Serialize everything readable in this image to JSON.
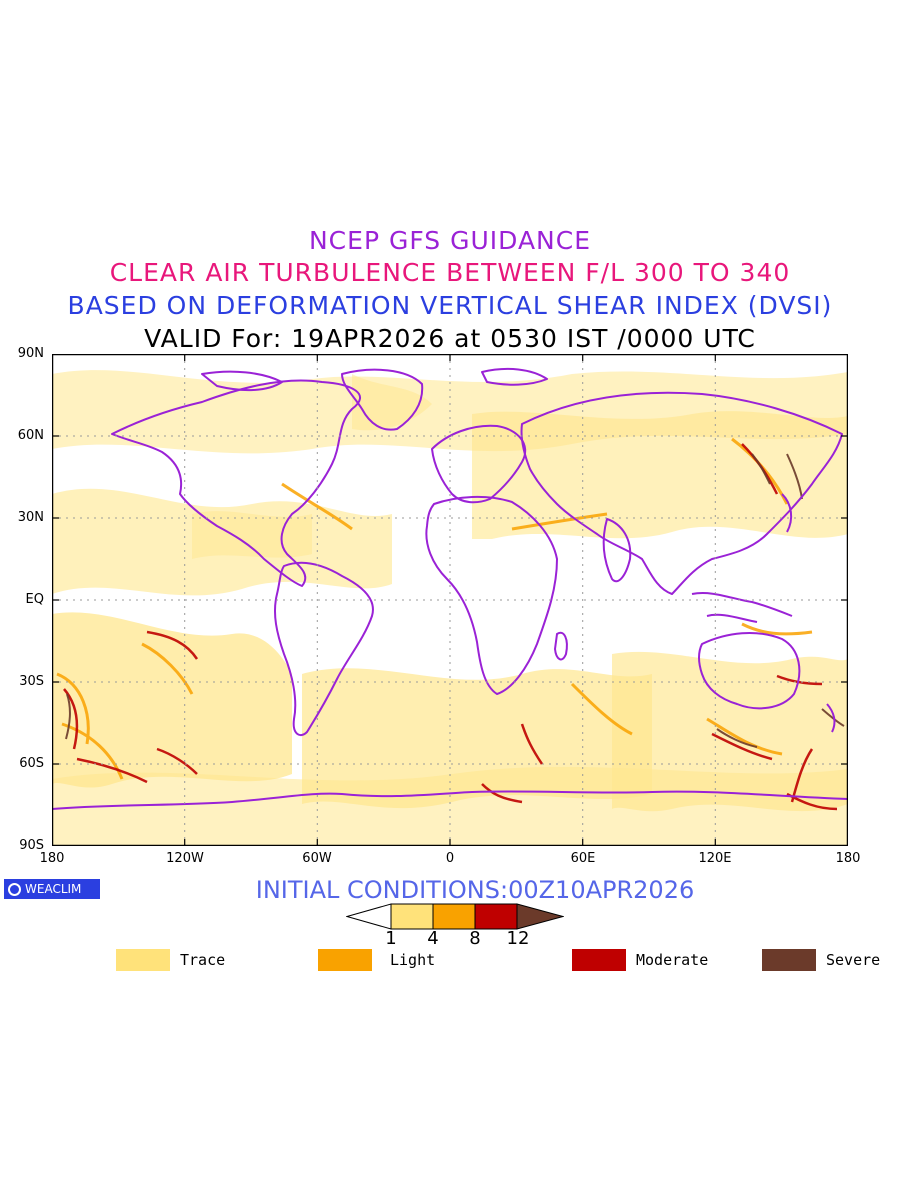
{
  "titles": {
    "line1": "NCEP GFS GUIDANCE",
    "line2": "CLEAR AIR TURBULENCE BETWEEN F/L 300 TO 340",
    "line3": "BASED ON DEFORMATION VERTICAL SHEAR INDEX (DVSI)",
    "line4": "VALID For: 19APR2026 at 0530 IST /0000 UTC"
  },
  "axes": {
    "y_ticks": [
      "90N",
      "60N",
      "30N",
      "EQ",
      "30S",
      "60S",
      "90S"
    ],
    "x_ticks": [
      "180",
      "120W",
      "60W",
      "0",
      "60E",
      "120E",
      "180"
    ]
  },
  "logo_text": "WEACLIM",
  "initial_conditions": "INITIAL CONDITIONS:00Z10APR2026",
  "colorbar": {
    "ticks": [
      "1",
      "4",
      "8",
      "12"
    ],
    "colors": [
      "#ffe27a",
      "#f9a200",
      "#bf0000",
      "#6b3a2a"
    ]
  },
  "legend": [
    {
      "label": "Trace",
      "color": "#ffe27a"
    },
    {
      "label": "Light",
      "color": "#f9a200"
    },
    {
      "label": "Moderate",
      "color": "#bf0000"
    },
    {
      "label": "Severe",
      "color": "#6b3a2a"
    }
  ],
  "map_colors": {
    "coast": "#9a22d6",
    "gridline": "#9a9a9a"
  }
}
